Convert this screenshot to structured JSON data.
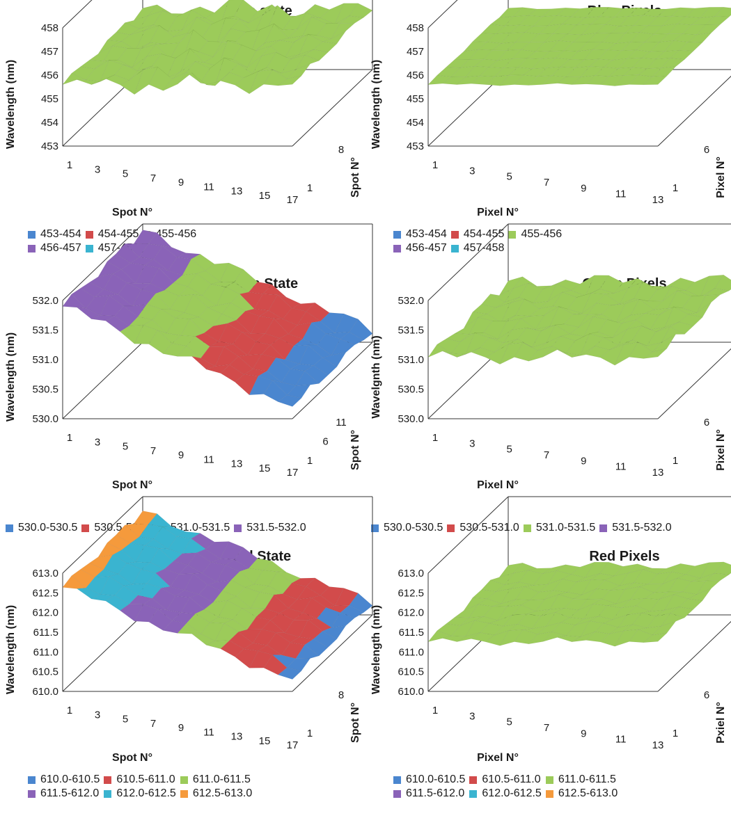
{
  "colors": {
    "blue": "#4a86cf",
    "red": "#d24b4b",
    "green": "#9ccb5a",
    "purple": "#8a63b8",
    "cyan": "#3ab4d0",
    "orange": "#f59a3c",
    "axis": "#333333",
    "grid": "#888888"
  },
  "chart_data": [
    {
      "type": "surface",
      "title": "Blue state",
      "zlabel": "Wavelength  (nm)",
      "xlabel": "Spot N°",
      "ylabel": "Spot N°",
      "z_ticks": [
        "453",
        "454",
        "455",
        "456",
        "457",
        "458"
      ],
      "zlim": [
        453,
        458
      ],
      "x_ticks": [
        "1",
        "3",
        "5",
        "7",
        "9",
        "11",
        "13",
        "15",
        "17"
      ],
      "y_ticks": [
        "1",
        "8"
      ],
      "legend": [
        {
          "label": "453-454",
          "color": "blue"
        },
        {
          "label": "454-455",
          "color": "red"
        },
        {
          "label": "455-456",
          "color": "green"
        },
        {
          "label": "456-457",
          "color": "purple"
        },
        {
          "label": "457-458",
          "color": "cyan"
        }
      ]
    },
    {
      "type": "surface",
      "title": "Blue Pixels",
      "zlabel": "Wavelength  (nm)",
      "xlabel": "Pixel N°",
      "ylabel": "Pixel N°",
      "z_ticks": [
        "453",
        "454",
        "455",
        "456",
        "457",
        "458"
      ],
      "zlim": [
        453,
        458
      ],
      "x_ticks": [
        "1",
        "3",
        "5",
        "7",
        "9",
        "11",
        "13"
      ],
      "y_ticks": [
        "1",
        "6"
      ],
      "legend": [
        {
          "label": "453-454",
          "color": "blue"
        },
        {
          "label": "454-455",
          "color": "red"
        },
        {
          "label": "455-456",
          "color": "green"
        },
        {
          "label": "456-457",
          "color": "purple"
        },
        {
          "label": "457-458",
          "color": "cyan"
        }
      ]
    },
    {
      "type": "surface",
      "title": "Green State",
      "zlabel": "Wavelength  (nm)",
      "xlabel": "Spot N°",
      "ylabel": "Spot N°",
      "z_ticks": [
        "530.0",
        "530.5",
        "531.0",
        "531.5",
        "532.0"
      ],
      "zlim": [
        530.0,
        532.0
      ],
      "x_ticks": [
        "1",
        "3",
        "5",
        "7",
        "9",
        "11",
        "13",
        "15",
        "17"
      ],
      "y_ticks": [
        "1",
        "6",
        "11"
      ],
      "legend": [
        {
          "label": "530.0-530.5",
          "color": "blue"
        },
        {
          "label": "530.5-531.0",
          "color": "red"
        },
        {
          "label": "531.0-531.5",
          "color": "green"
        },
        {
          "label": "531.5-532.0",
          "color": "purple"
        }
      ]
    },
    {
      "type": "surface",
      "title": "Green Pixels",
      "zlabel": "Wavelgnth  (nm)",
      "xlabel": "Pixel N°",
      "ylabel": "Pixel N°",
      "z_ticks": [
        "530.0",
        "530.5",
        "531.0",
        "531.5",
        "532.0"
      ],
      "zlim": [
        530.0,
        532.0
      ],
      "x_ticks": [
        "1",
        "3",
        "5",
        "7",
        "9",
        "11",
        "13"
      ],
      "y_ticks": [
        "1",
        "6"
      ],
      "legend": [
        {
          "label": "530.0-530.5",
          "color": "blue"
        },
        {
          "label": "530.5-531.0",
          "color": "red"
        },
        {
          "label": "531.0-531.5",
          "color": "green"
        },
        {
          "label": "531.5-532.0",
          "color": "purple"
        }
      ]
    },
    {
      "type": "surface",
      "title": "Red State",
      "zlabel": "Wavelength  (nm)",
      "xlabel": "Spot N°",
      "ylabel": "Spot N°",
      "z_ticks": [
        "610.0",
        "610.5",
        "611.0",
        "611.5",
        "612.0",
        "612.5",
        "613.0"
      ],
      "zlim": [
        610.0,
        613.0
      ],
      "x_ticks": [
        "1",
        "3",
        "5",
        "7",
        "9",
        "11",
        "13",
        "15",
        "17"
      ],
      "y_ticks": [
        "1",
        "8"
      ],
      "legend": [
        {
          "label": "610.0-610.5",
          "color": "blue"
        },
        {
          "label": "610.5-611.0",
          "color": "red"
        },
        {
          "label": "611.0-611.5",
          "color": "green"
        },
        {
          "label": "611.5-612.0",
          "color": "purple"
        },
        {
          "label": "612.0-612.5",
          "color": "cyan"
        },
        {
          "label": "612.5-613.0",
          "color": "orange"
        }
      ]
    },
    {
      "type": "surface",
      "title": "Red Pixels",
      "zlabel": "Wavelength  (nm)",
      "xlabel": "Pixel N°",
      "ylabel": "Pxiel N°",
      "z_ticks": [
        "610.0",
        "610.5",
        "611.0",
        "611.5",
        "612.0",
        "612.5",
        "613.0"
      ],
      "zlim": [
        610.0,
        613.0
      ],
      "x_ticks": [
        "1",
        "3",
        "5",
        "7",
        "9",
        "11",
        "13"
      ],
      "y_ticks": [
        "1",
        "6"
      ],
      "legend": [
        {
          "label": "610.0-610.5",
          "color": "blue"
        },
        {
          "label": "610.5-611.0",
          "color": "red"
        },
        {
          "label": "611.0-611.5",
          "color": "green"
        },
        {
          "label": "611.5-612.0",
          "color": "purple"
        },
        {
          "label": "612.0-612.5",
          "color": "cyan"
        },
        {
          "label": "612.5-613.0",
          "color": "orange"
        }
      ]
    }
  ]
}
